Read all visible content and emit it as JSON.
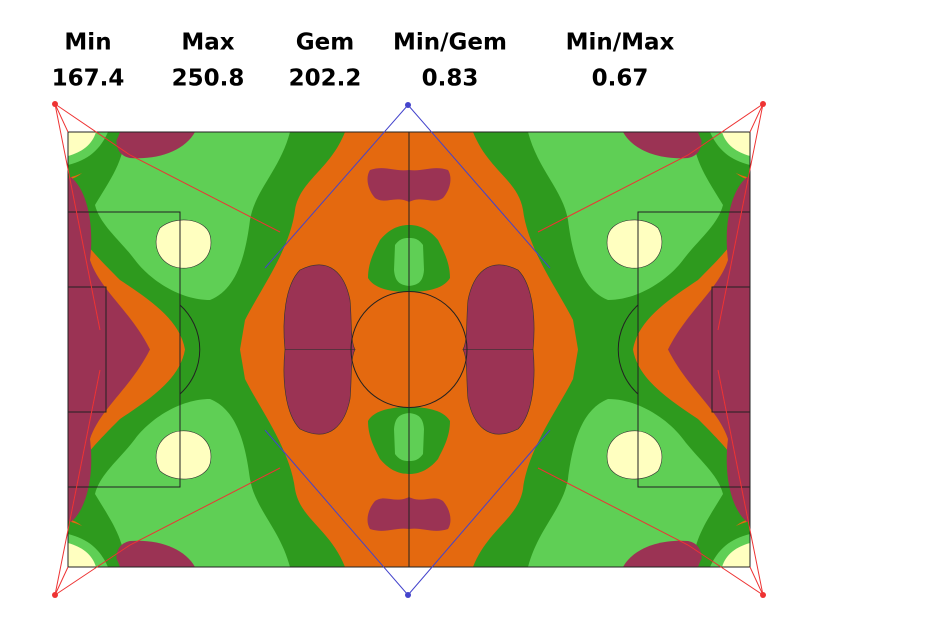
{
  "stats": {
    "labels": [
      "Min",
      "Max",
      "Gem",
      "Min/Gem",
      "Min/Max"
    ],
    "values": [
      167.4,
      250.8,
      202.2,
      0.83,
      0.67
    ]
  }
}
